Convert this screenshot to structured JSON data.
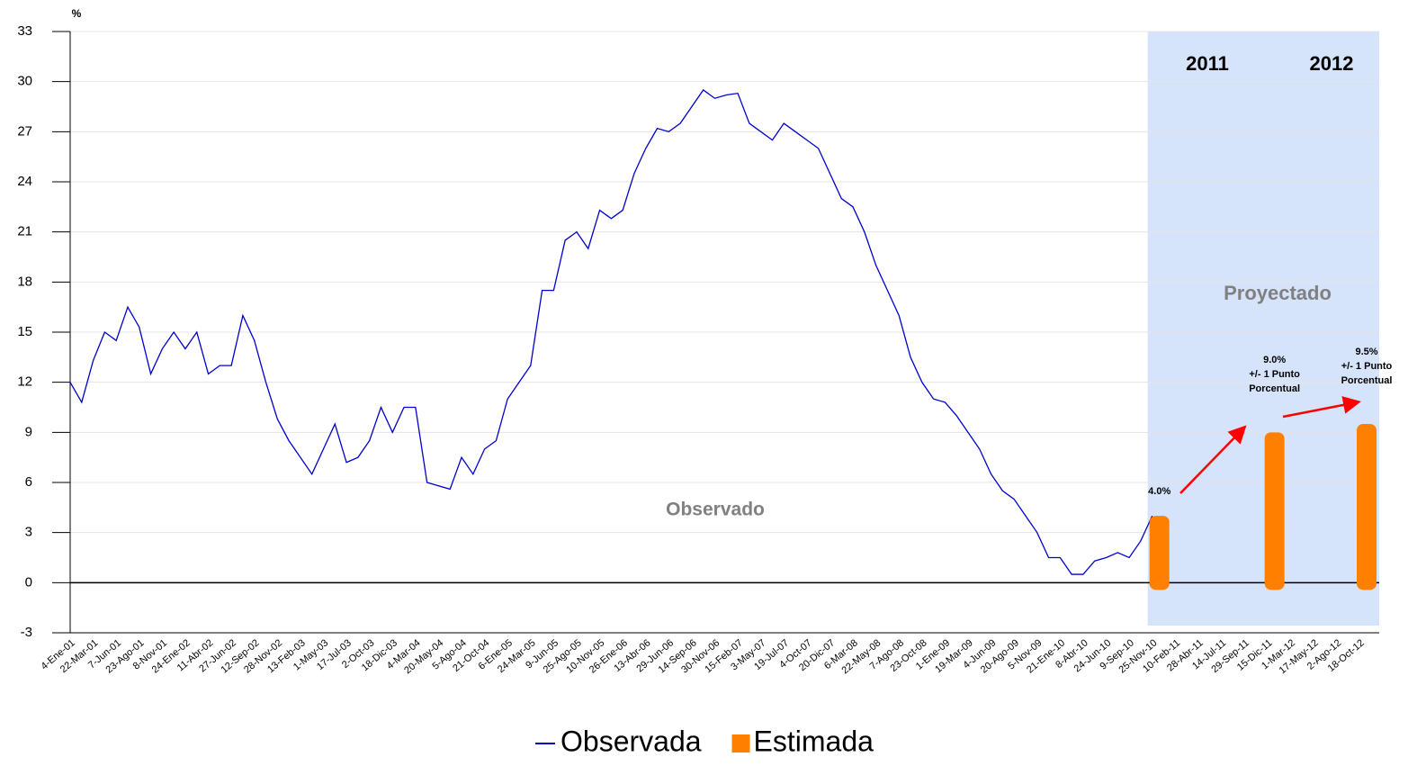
{
  "chart_data": {
    "type": "line",
    "y_label": "%",
    "categories": [
      "4-Ene-01",
      null,
      "22-Mar-01",
      null,
      "7-Jun-01",
      null,
      "23-Ago-01",
      null,
      "8-Nov-01",
      null,
      "24-Ene-02",
      null,
      "11-Abr-02",
      null,
      "27-Jun-02",
      null,
      "12-Sep-02",
      null,
      "28-Nov-02",
      null,
      "13-Feb-03",
      null,
      "1-May-03",
      null,
      "17-Jul-03",
      null,
      "2-Oct-03",
      null,
      "18-Dic-03",
      null,
      "4-Mar-04",
      null,
      "20-May-04",
      null,
      "5-Ago-04",
      null,
      "21-Oct-04",
      null,
      "6-Ene-05",
      null,
      "24-Mar-05",
      null,
      "9-Jun-05",
      null,
      "25-Ago-05",
      null,
      "10-Nov-05",
      null,
      "26-Ene-06",
      null,
      "13-Abr-06",
      null,
      "29-Jun-06",
      null,
      "14-Sep-06",
      null,
      "30-Nov-06",
      null,
      "15-Feb-07",
      null,
      "3-May-07",
      null,
      "19-Jul-07",
      null,
      "4-Oct-07",
      null,
      "20-Dic-07",
      null,
      "6-Mar-08",
      null,
      "22-May-08",
      null,
      "7-Ago-08",
      null,
      "23-Oct-08",
      null,
      "1-Ene-09",
      null,
      "19-Mar-09",
      null,
      "4-Jun-09",
      null,
      "20-Ago-09",
      null,
      "5-Nov-09",
      null,
      "21-Ene-10",
      null,
      "8-Abr-10",
      null,
      "24-Jun-10",
      null,
      "9-Sep-10",
      null,
      "25-Nov-10",
      null,
      "10-Feb-11",
      null,
      "28-Abr-11",
      null,
      "14-Jul-11",
      null,
      "29-Sep-11",
      null,
      "15-Dic-11",
      null,
      "1-Mar-12",
      null,
      "17-May-12",
      null,
      "2-Ago-12",
      null,
      "18-Oct-12"
    ],
    "series": [
      {
        "name": "Observada",
        "color": "#0000cc",
        "style": "line",
        "values": [
          12,
          10.8,
          13.3,
          15,
          14.5,
          16.5,
          15.3,
          12.5,
          14,
          15,
          14,
          15,
          12.5,
          13,
          13,
          16,
          14.5,
          12,
          9.8,
          8.5,
          7.5,
          6.5,
          8,
          9.5,
          7.2,
          7.5,
          8.5,
          10.5,
          9,
          10.5,
          10.5,
          6,
          5.8,
          5.6,
          7.5,
          6.5,
          8,
          8.5,
          11,
          12,
          13,
          17.5,
          17.5,
          20.5,
          21,
          20,
          22.3,
          21.8,
          22.3,
          24.5,
          26,
          27.2,
          27,
          27.5,
          28.5,
          29.5,
          29,
          29.2,
          29.3,
          27.5,
          27,
          26.5,
          27.5,
          27,
          26.5,
          26,
          24.5,
          23,
          22.5,
          21,
          19,
          17.5,
          16,
          13.5,
          12,
          11,
          10.8,
          10,
          9,
          8,
          6.5,
          5.5,
          5,
          4,
          3,
          1.5,
          1.5,
          0.5,
          0.5,
          1.3,
          1.5,
          1.8,
          1.5,
          2.5,
          4.0,
          null,
          null,
          null,
          null,
          null,
          null,
          null,
          null,
          null,
          null,
          null,
          null,
          null,
          null,
          null,
          null,
          null,
          null
        ]
      },
      {
        "name": "Estimada",
        "color": "#ff8000",
        "style": "bar",
        "values": [
          null,
          null,
          null,
          null,
          null,
          null,
          null,
          null,
          null,
          null,
          null,
          null,
          null,
          null,
          null,
          null,
          null,
          null,
          null,
          null,
          null,
          null,
          null,
          null,
          null,
          null,
          null,
          null,
          null,
          null,
          null,
          null,
          null,
          null,
          null,
          null,
          null,
          null,
          null,
          null,
          null,
          null,
          null,
          null,
          null,
          null,
          null,
          null,
          null,
          null,
          null,
          null,
          null,
          null,
          null,
          null,
          null,
          null,
          null,
          null,
          null,
          null,
          null,
          null,
          null,
          null,
          null,
          null,
          null,
          null,
          null,
          null,
          null,
          null,
          null,
          null,
          null,
          null,
          null,
          null,
          null,
          null,
          null,
          null,
          null,
          null,
          null,
          null,
          null,
          null,
          null,
          null,
          null,
          null,
          4.0,
          null,
          null,
          null,
          null,
          null,
          null,
          null,
          null,
          null,
          9.0,
          null,
          null,
          null,
          null,
          null,
          null,
          null,
          9.5
        ],
        "value_labels": [
          null,
          null,
          null,
          null,
          null,
          null,
          null,
          null,
          null,
          null,
          null,
          null,
          null,
          null,
          null,
          null,
          null,
          null,
          null,
          null,
          null,
          null,
          null,
          null,
          null,
          null,
          null,
          null,
          null,
          null,
          null,
          null,
          null,
          null,
          null,
          null,
          null,
          null,
          null,
          null,
          null,
          null,
          null,
          null,
          null,
          null,
          null,
          null,
          null,
          null,
          null,
          null,
          null,
          null,
          null,
          null,
          null,
          null,
          null,
          null,
          null,
          null,
          null,
          null,
          null,
          null,
          null,
          null,
          null,
          null,
          null,
          null,
          null,
          null,
          null,
          null,
          null,
          null,
          null,
          null,
          null,
          null,
          null,
          null,
          null,
          null,
          null,
          null,
          null,
          null,
          null,
          null,
          null,
          null,
          "4.0%",
          null,
          null,
          null,
          null,
          null,
          null,
          null,
          null,
          null,
          "9.0%",
          null,
          null,
          null,
          null,
          null,
          null,
          null,
          "9.5%"
        ]
      }
    ],
    "annotations": [
      "Observado",
      "Proyectado",
      "2011",
      "2012",
      "+/- 1 Punto",
      "Porcentual"
    ],
    "ylim": [
      -3,
      33
    ],
    "yticks": [
      -3,
      0,
      3,
      6,
      9,
      12,
      15,
      18,
      21,
      24,
      27,
      30,
      33
    ],
    "grid": true,
    "legend": "bottom"
  }
}
